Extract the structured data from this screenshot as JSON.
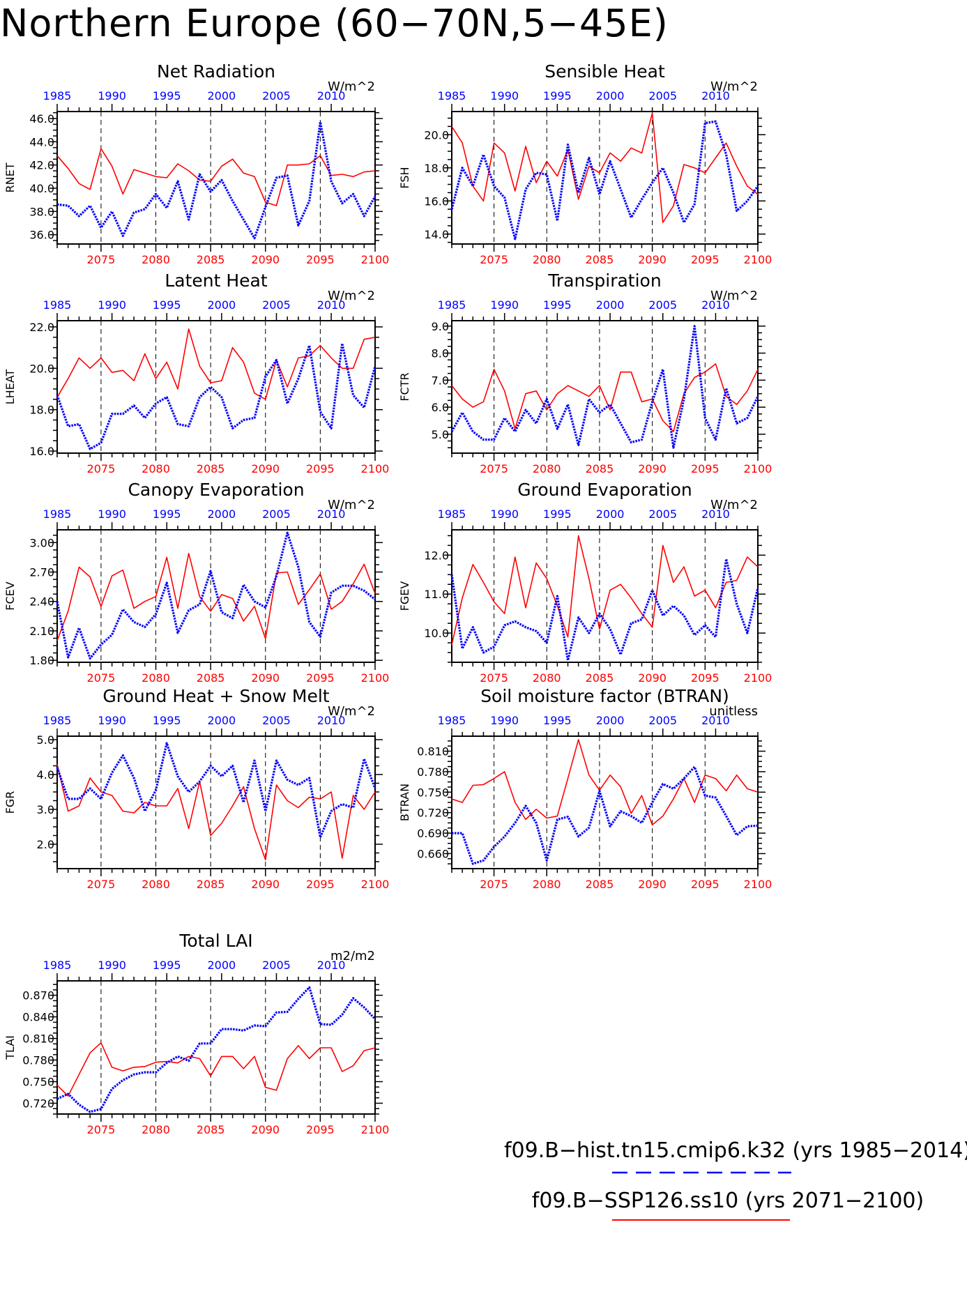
{
  "title": "Northern Europe (60−70N,5−45E)",
  "colors": {
    "ssp": "#ff0000",
    "hist": "#0000ff",
    "axis": "#000000"
  },
  "legend": {
    "hist_label": "f09.B−hist.tn15.cmip6.k32 (yrs 1985−2014)",
    "ssp_label": "f09.B−SSP126.ss10 (yrs 2071−2100)"
  },
  "chart_data": [
    {
      "type": "line",
      "title": "Net Radiation",
      "ylabel": "RNET",
      "units": "W/m^2",
      "ylim": [
        35.2,
        46.6
      ],
      "yticks": [
        36.0,
        38.0,
        40.0,
        42.0,
        44.0,
        46.0
      ],
      "ytick_decimals": 1,
      "x_bottom": [
        2071,
        2100
      ],
      "bottom_ticks": [
        2075,
        2080,
        2085,
        2090,
        2095,
        2100
      ],
      "x_top": [
        1985,
        2014
      ],
      "top_ticks": [
        1985,
        1990,
        1995,
        2000,
        2005,
        2010
      ],
      "dashed_years": [
        2075,
        2080,
        2085,
        2090,
        2095
      ],
      "series": [
        {
          "values": [
            42.8,
            41.7,
            40.4,
            39.9,
            43.4,
            41.9,
            39.5,
            41.6,
            41.3,
            41.0,
            40.9,
            42.1,
            41.5,
            40.7,
            40.6,
            41.9,
            42.5,
            41.3,
            41.0,
            38.8,
            38.5,
            42.0,
            42.0,
            42.1,
            42.8,
            41.1,
            41.2,
            41.0,
            41.4,
            41.5
          ]
        },
        {
          "dotted": true,
          "values": [
            38.6,
            38.5,
            37.6,
            38.5,
            36.6,
            38.0,
            35.9,
            37.9,
            38.2,
            39.5,
            38.3,
            40.6,
            37.3,
            41.2,
            39.7,
            40.7,
            38.9,
            37.3,
            35.7,
            38.4,
            40.9,
            41.1,
            36.8,
            38.9,
            45.7,
            40.6,
            38.7,
            39.5,
            37.6,
            39.3
          ]
        }
      ]
    },
    {
      "type": "line",
      "title": "Sensible Heat",
      "ylabel": "FSH",
      "units": "W/m^2",
      "ylim": [
        13.4,
        21.4
      ],
      "yticks": [
        14.0,
        16.0,
        18.0,
        20.0
      ],
      "ytick_decimals": 1,
      "x_bottom": [
        2071,
        2100
      ],
      "bottom_ticks": [
        2075,
        2080,
        2085,
        2090,
        2095,
        2100
      ],
      "x_top": [
        1985,
        2014
      ],
      "top_ticks": [
        1985,
        1990,
        1995,
        2000,
        2005,
        2010
      ],
      "dashed_years": [
        2075,
        2080,
        2085,
        2090,
        2095
      ],
      "series": [
        {
          "values": [
            20.5,
            19.5,
            16.9,
            16.0,
            19.5,
            18.9,
            16.6,
            19.3,
            17.1,
            18.4,
            17.5,
            19.1,
            16.1,
            18.1,
            17.7,
            18.9,
            18.4,
            19.2,
            18.9,
            21.3,
            14.7,
            15.7,
            18.2,
            18.0,
            17.7,
            18.6,
            19.5,
            18.1,
            16.9,
            16.4
          ]
        },
        {
          "dotted": true,
          "values": [
            15.5,
            18.0,
            16.9,
            18.8,
            16.9,
            16.2,
            13.7,
            16.7,
            17.7,
            17.6,
            14.8,
            19.4,
            16.5,
            18.6,
            16.4,
            18.4,
            16.7,
            15.0,
            16.1,
            17.1,
            18.0,
            16.5,
            14.7,
            15.8,
            20.7,
            20.8,
            18.8,
            15.4,
            16.0,
            16.9
          ]
        }
      ]
    },
    {
      "type": "line",
      "title": "Latent Heat",
      "ylabel": "LHEAT",
      "units": "W/m^2",
      "ylim": [
        15.9,
        22.3
      ],
      "yticks": [
        16.0,
        18.0,
        20.0,
        22.0
      ],
      "ytick_decimals": 1,
      "x_bottom": [
        2071,
        2100
      ],
      "bottom_ticks": [
        2075,
        2080,
        2085,
        2090,
        2095,
        2100
      ],
      "x_top": [
        1985,
        2014
      ],
      "top_ticks": [
        1985,
        1990,
        1995,
        2000,
        2005,
        2010
      ],
      "dashed_years": [
        2075,
        2080,
        2085,
        2090,
        2095
      ],
      "series": [
        {
          "values": [
            18.6,
            19.5,
            20.5,
            20.0,
            20.5,
            19.8,
            19.9,
            19.4,
            20.7,
            19.5,
            20.3,
            19.0,
            21.9,
            20.1,
            19.3,
            19.4,
            21.0,
            20.3,
            18.8,
            18.5,
            20.4,
            19.1,
            20.5,
            20.6,
            21.1,
            20.5,
            20.0,
            20.0,
            21.4,
            21.5
          ]
        },
        {
          "dotted": true,
          "values": [
            18.7,
            17.2,
            17.3,
            16.1,
            16.4,
            17.8,
            17.8,
            18.2,
            17.6,
            18.3,
            18.6,
            17.3,
            17.2,
            18.6,
            19.1,
            18.6,
            17.1,
            17.5,
            17.6,
            19.6,
            20.4,
            18.3,
            19.5,
            21.1,
            17.9,
            17.1,
            21.2,
            18.7,
            18.1,
            20.1
          ]
        }
      ]
    },
    {
      "type": "line",
      "title": "Transpiration",
      "ylabel": "FCTR",
      "units": "W/m^2",
      "ylim": [
        4.3,
        9.2
      ],
      "yticks": [
        5.0,
        6.0,
        7.0,
        8.0,
        9.0
      ],
      "ytick_decimals": 1,
      "x_bottom": [
        2071,
        2100
      ],
      "bottom_ticks": [
        2075,
        2080,
        2085,
        2090,
        2095,
        2100
      ],
      "x_top": [
        1985,
        2014
      ],
      "top_ticks": [
        1985,
        1990,
        1995,
        2000,
        2005,
        2010
      ],
      "dashed_years": [
        2075,
        2080,
        2085,
        2090,
        2095
      ],
      "series": [
        {
          "values": [
            6.8,
            6.3,
            6.0,
            6.2,
            7.4,
            6.6,
            5.2,
            6.5,
            6.6,
            5.9,
            6.5,
            6.8,
            6.6,
            6.4,
            6.8,
            5.9,
            7.3,
            7.3,
            6.2,
            6.3,
            5.5,
            5.1,
            6.5,
            7.1,
            7.3,
            7.6,
            6.4,
            6.1,
            6.6,
            7.4
          ]
        },
        {
          "dotted": true,
          "values": [
            5.1,
            5.8,
            5.1,
            4.8,
            4.8,
            5.6,
            5.1,
            5.9,
            5.4,
            6.3,
            5.2,
            6.1,
            4.6,
            6.3,
            5.8,
            6.1,
            5.4,
            4.7,
            4.8,
            6.2,
            7.4,
            4.5,
            6.3,
            9.0,
            5.6,
            4.8,
            6.7,
            5.4,
            5.6,
            6.4
          ]
        }
      ]
    },
    {
      "type": "line",
      "title": "Canopy Evaporation",
      "ylabel": "FCEV",
      "units": "W/m^2",
      "ylim": [
        1.78,
        3.13
      ],
      "yticks": [
        1.8,
        2.1,
        2.4,
        2.7,
        3.0
      ],
      "ytick_decimals": 2,
      "x_bottom": [
        2071,
        2100
      ],
      "bottom_ticks": [
        2075,
        2080,
        2085,
        2090,
        2095,
        2100
      ],
      "x_top": [
        1985,
        2014
      ],
      "top_ticks": [
        1985,
        1990,
        1995,
        2000,
        2005,
        2010
      ],
      "dashed_years": [
        2075,
        2080,
        2085,
        2090,
        2095
      ],
      "series": [
        {
          "values": [
            2.0,
            2.3,
            2.75,
            2.65,
            2.35,
            2.66,
            2.72,
            2.33,
            2.4,
            2.45,
            2.85,
            2.33,
            2.89,
            2.45,
            2.3,
            2.47,
            2.43,
            2.2,
            2.35,
            2.02,
            2.69,
            2.7,
            2.37,
            2.52,
            2.68,
            2.32,
            2.4,
            2.58,
            2.78,
            2.48
          ]
        },
        {
          "dotted": true,
          "values": [
            2.4,
            1.83,
            2.13,
            1.82,
            1.96,
            2.06,
            2.32,
            2.19,
            2.14,
            2.27,
            2.59,
            2.08,
            2.31,
            2.37,
            2.71,
            2.29,
            2.23,
            2.57,
            2.4,
            2.34,
            2.66,
            3.1,
            2.75,
            2.19,
            2.04,
            2.49,
            2.56,
            2.56,
            2.51,
            2.42
          ]
        }
      ]
    },
    {
      "type": "line",
      "title": "Ground Evaporation",
      "ylabel": "FGEV",
      "units": "W/m^2",
      "ylim": [
        9.25,
        12.65
      ],
      "yticks": [
        10.0,
        11.0,
        12.0
      ],
      "ytick_decimals": 1,
      "x_bottom": [
        2071,
        2100
      ],
      "bottom_ticks": [
        2075,
        2080,
        2085,
        2090,
        2095,
        2100
      ],
      "x_top": [
        1985,
        2014
      ],
      "top_ticks": [
        1985,
        1990,
        1995,
        2000,
        2005,
        2010
      ],
      "dashed_years": [
        2075,
        2080,
        2085,
        2090,
        2095
      ],
      "series": [
        {
          "values": [
            9.7,
            10.9,
            11.76,
            11.3,
            10.8,
            10.5,
            11.95,
            10.65,
            11.8,
            11.4,
            10.7,
            9.9,
            12.5,
            11.4,
            10.1,
            11.1,
            11.25,
            10.9,
            10.5,
            10.15,
            12.25,
            11.3,
            11.7,
            10.95,
            11.1,
            10.65,
            11.3,
            11.35,
            11.95,
            11.7
          ]
        },
        {
          "dotted": true,
          "values": [
            11.5,
            9.6,
            10.15,
            9.5,
            9.65,
            10.2,
            10.3,
            10.15,
            10.05,
            9.75,
            10.95,
            9.3,
            10.4,
            10.0,
            10.5,
            10.1,
            9.45,
            10.25,
            10.35,
            11.1,
            10.45,
            10.7,
            10.45,
            9.95,
            10.2,
            9.9,
            11.9,
            10.75,
            10.0,
            11.15
          ]
        }
      ]
    },
    {
      "type": "line",
      "title": "Ground Heat + Snow Melt",
      "ylabel": "FGR",
      "units": "W/m^2",
      "ylim": [
        1.3,
        5.1
      ],
      "yticks": [
        2.0,
        3.0,
        4.0,
        5.0
      ],
      "ytick_decimals": 1,
      "x_bottom": [
        2071,
        2100
      ],
      "bottom_ticks": [
        2075,
        2080,
        2085,
        2090,
        2095,
        2100
      ],
      "x_top": [
        1985,
        2014
      ],
      "top_ticks": [
        1985,
        1990,
        1995,
        2000,
        2005,
        2010
      ],
      "dashed_years": [
        2075,
        2080,
        2085,
        2090,
        2095
      ],
      "series": [
        {
          "values": [
            4.3,
            2.95,
            3.1,
            3.9,
            3.5,
            3.4,
            2.95,
            2.9,
            3.2,
            3.1,
            3.1,
            3.6,
            2.45,
            3.8,
            2.25,
            2.6,
            3.1,
            3.65,
            2.45,
            1.55,
            3.7,
            3.25,
            3.05,
            3.35,
            3.3,
            3.5,
            1.6,
            3.4,
            3.0,
            3.5
          ]
        },
        {
          "dotted": true,
          "values": [
            4.2,
            3.3,
            3.3,
            3.6,
            3.3,
            4.05,
            4.55,
            3.9,
            2.95,
            3.55,
            4.9,
            3.95,
            3.5,
            3.8,
            4.25,
            3.95,
            4.25,
            3.2,
            4.4,
            2.95,
            4.4,
            3.85,
            3.7,
            3.9,
            2.2,
            2.95,
            3.15,
            3.05,
            4.45,
            3.6
          ]
        }
      ]
    },
    {
      "type": "line",
      "title": "Soil moisture factor (BTRAN)",
      "ylabel": "BTRAN",
      "units": "unitless",
      "ylim": [
        0.638,
        0.832
      ],
      "yticks": [
        0.66,
        0.69,
        0.72,
        0.75,
        0.78,
        0.81
      ],
      "ytick_decimals": 3,
      "x_bottom": [
        2071,
        2100
      ],
      "bottom_ticks": [
        2075,
        2080,
        2085,
        2090,
        2095,
        2100
      ],
      "x_top": [
        1985,
        2014
      ],
      "top_ticks": [
        1985,
        1990,
        1995,
        2000,
        2005,
        2010
      ],
      "dashed_years": [
        2075,
        2080,
        2085,
        2090,
        2095
      ],
      "series": [
        {
          "values": [
            0.74,
            0.735,
            0.76,
            0.761,
            0.77,
            0.78,
            0.735,
            0.71,
            0.725,
            0.712,
            0.715,
            0.77,
            0.827,
            0.775,
            0.753,
            0.775,
            0.758,
            0.719,
            0.745,
            0.702,
            0.715,
            0.74,
            0.77,
            0.735,
            0.775,
            0.77,
            0.752,
            0.775,
            0.755,
            0.75
          ]
        },
        {
          "dotted": true,
          "values": [
            0.69,
            0.69,
            0.645,
            0.65,
            0.67,
            0.685,
            0.705,
            0.73,
            0.705,
            0.65,
            0.71,
            0.714,
            0.685,
            0.698,
            0.752,
            0.7,
            0.722,
            0.715,
            0.705,
            0.735,
            0.762,
            0.755,
            0.77,
            0.787,
            0.745,
            0.742,
            0.715,
            0.687,
            0.7,
            0.701
          ]
        }
      ]
    },
    {
      "type": "line",
      "title": "Total LAI",
      "ylabel": "TLAI",
      "units": "m2/m2",
      "ylim": [
        0.705,
        0.89
      ],
      "yticks": [
        0.72,
        0.75,
        0.78,
        0.81,
        0.84,
        0.87
      ],
      "ytick_decimals": 3,
      "x_bottom": [
        2071,
        2100
      ],
      "bottom_ticks": [
        2075,
        2080,
        2085,
        2090,
        2095,
        2100
      ],
      "x_top": [
        1985,
        2014
      ],
      "top_ticks": [
        1985,
        1990,
        1995,
        2000,
        2005,
        2010
      ],
      "dashed_years": [
        2075,
        2080,
        2085,
        2090,
        2095
      ],
      "series": [
        {
          "values": [
            0.745,
            0.73,
            0.76,
            0.79,
            0.804,
            0.77,
            0.765,
            0.77,
            0.771,
            0.777,
            0.778,
            0.776,
            0.785,
            0.782,
            0.758,
            0.785,
            0.785,
            0.768,
            0.785,
            0.742,
            0.738,
            0.782,
            0.8,
            0.782,
            0.797,
            0.797,
            0.764,
            0.772,
            0.793,
            0.797
          ]
        },
        {
          "dotted": true,
          "values": [
            0.726,
            0.733,
            0.718,
            0.708,
            0.712,
            0.74,
            0.752,
            0.76,
            0.763,
            0.763,
            0.776,
            0.785,
            0.779,
            0.803,
            0.803,
            0.823,
            0.823,
            0.821,
            0.828,
            0.827,
            0.846,
            0.847,
            0.865,
            0.881,
            0.83,
            0.829,
            0.843,
            0.866,
            0.853,
            0.837
          ]
        }
      ]
    }
  ]
}
